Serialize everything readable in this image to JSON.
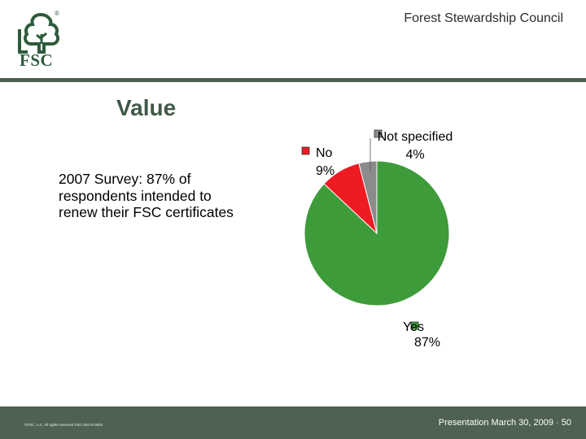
{
  "header": {
    "organization": "Forest Stewardship Council",
    "logo_text": "FSC",
    "logo_registered": "®"
  },
  "slide": {
    "title": "Value",
    "body_text": "2007 Survey: 87% of respondents intended to renew their FSC certificates"
  },
  "chart_data": {
    "type": "pie",
    "slices": [
      {
        "label": "Yes",
        "value": 87,
        "display": "87%",
        "color": "#3e9b3a"
      },
      {
        "label": "No",
        "value": 9,
        "display": "9%",
        "color": "#ee1b23"
      },
      {
        "label": "Not specified",
        "value": 4,
        "display": "4%",
        "color": "#8b8b8b"
      }
    ],
    "legend": "none",
    "data_labels": "outside"
  },
  "footer": {
    "copyright": "©FSC, A.C. All rights reserved FSC-SECR-0002",
    "presentation": "Presentation March 30, 2009 · 50"
  },
  "colors": {
    "brand_green": "#3f5a47",
    "bar": "#4e6152"
  }
}
